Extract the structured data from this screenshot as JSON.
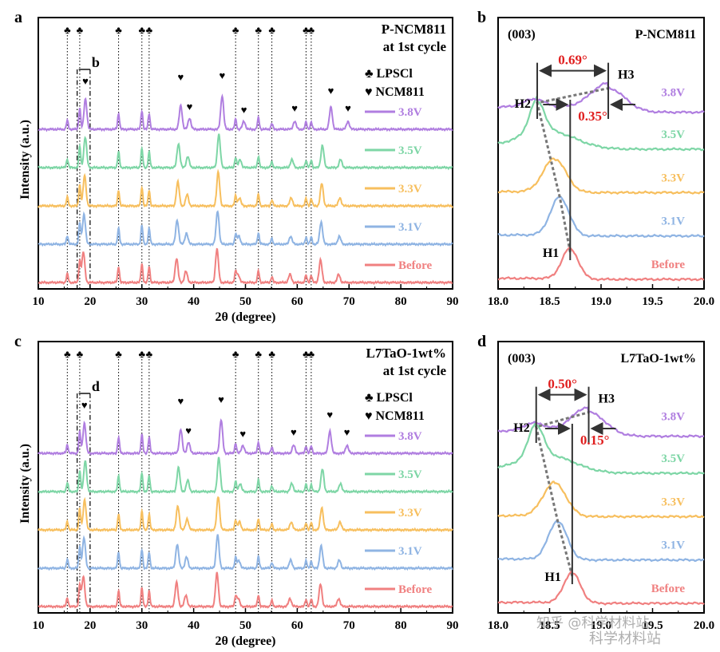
{
  "colors": {
    "Before": "#f08080",
    "3.1V": "#8fb4e3",
    "3.3V": "#f7bf5e",
    "3.5V": "#7ed6a6",
    "3.8V": "#b07ee0",
    "annotation_red": "#e01e1e",
    "axis": "#000000",
    "dashed_guide": "#777777"
  },
  "watermark": {
    "text1": "知乎 @科学材料站",
    "text2": "科学材料站"
  },
  "chart_data": [
    {
      "panel": "a",
      "type": "line",
      "title": "P-NCM811",
      "subtitle": "at 1st cycle",
      "xlabel": "2θ (degree)",
      "ylabel": "Intensity (a.u.)",
      "xlim": [
        10,
        90
      ],
      "xticks": [
        "10",
        "20",
        "30",
        "40",
        "50",
        "60",
        "70",
        "80",
        "90"
      ],
      "legend": {
        "lpscl": "♣ LPSCl",
        "ncm": "♥ NCM811"
      },
      "zoom_label": "b",
      "zoom_range": [
        17.5,
        20
      ],
      "series": [
        {
          "name": "Before",
          "label": "Before"
        },
        {
          "name": "3.1V",
          "label": "3.1V"
        },
        {
          "name": "3.3V",
          "label": "3.3V"
        },
        {
          "name": "3.5V",
          "label": "3.5V"
        },
        {
          "name": "3.8V",
          "label": "3.8V"
        }
      ],
      "lpscl_peaks": [
        15.6,
        18.0,
        25.5,
        30.0,
        31.4,
        48.1,
        52.5,
        55.1,
        61.7,
        62.7
      ],
      "ncm_peaks": [
        18.7,
        36.7,
        38.5,
        44.5,
        48.6,
        58.6,
        64.5,
        68.0
      ],
      "ncm_peaks_38V": [
        19.1,
        37.5,
        39.2,
        45.5,
        49.7,
        59.5,
        66.5,
        69.8
      ],
      "ncm_marker_positions_38V": [
        19.1,
        37.5,
        39.2,
        45.5,
        49.7,
        59.5,
        66.5,
        69.8
      ]
    },
    {
      "panel": "b",
      "type": "line",
      "title": "P-NCM811",
      "peak_label": "(003)",
      "xlim": [
        18.0,
        20.0
      ],
      "xticks": [
        "18.0",
        "18.5",
        "19.0",
        "19.5",
        "20.0"
      ],
      "series": [
        {
          "name": "Before",
          "label": "Before",
          "peak": 18.7
        },
        {
          "name": "3.1V",
          "label": "3.1V",
          "peak": 18.6
        },
        {
          "name": "3.3V",
          "label": "3.3V",
          "peak": 18.55
        },
        {
          "name": "3.5V",
          "label": "3.5V",
          "peak": 18.38
        },
        {
          "name": "3.8V",
          "label": "3.8V",
          "peak": 19.07
        }
      ],
      "H1": "H1",
      "H2": "H2",
      "H3": "H3",
      "shift_large": "0.69°",
      "shift_small": "0.35°"
    },
    {
      "panel": "c",
      "type": "line",
      "title": "L7TaO-1wt%",
      "subtitle": "at 1st cycle",
      "xlabel": "2θ (degree)",
      "ylabel": "Intensity (a.u.)",
      "xlim": [
        10,
        90
      ],
      "xticks": [
        "10",
        "20",
        "30",
        "40",
        "50",
        "60",
        "70",
        "80",
        "90"
      ],
      "legend": {
        "lpscl": "♣ LPSCl",
        "ncm": "♥ NCM811"
      },
      "zoom_label": "d",
      "zoom_range": [
        17.5,
        20
      ],
      "series": [
        {
          "name": "Before",
          "label": "Before"
        },
        {
          "name": "3.1V",
          "label": "3.1V"
        },
        {
          "name": "3.3V",
          "label": "3.3V"
        },
        {
          "name": "3.5V",
          "label": "3.5V"
        },
        {
          "name": "3.8V",
          "label": "3.8V"
        }
      ],
      "lpscl_peaks": [
        15.6,
        18.0,
        25.5,
        30.0,
        31.4,
        48.1,
        52.5,
        55.1,
        61.7,
        62.7
      ],
      "ncm_peaks": [
        18.7,
        36.7,
        38.5,
        44.5,
        48.6,
        58.6,
        64.5,
        68.0
      ],
      "ncm_peaks_38V": [
        18.9,
        37.5,
        39.0,
        45.3,
        49.5,
        59.3,
        66.3,
        69.6
      ],
      "ncm_marker_positions_38V": [
        18.9,
        37.5,
        39.0,
        45.3,
        49.5,
        59.3,
        66.3,
        69.6
      ]
    },
    {
      "panel": "d",
      "type": "line",
      "title": "L7TaO-1wt%",
      "peak_label": "(003)",
      "xlim": [
        18.0,
        20.0
      ],
      "xticks": [
        "18.0",
        "18.5",
        "19.0",
        "19.5",
        "20.0"
      ],
      "series": [
        {
          "name": "Before",
          "label": "Before",
          "peak": 18.72
        },
        {
          "name": "3.1V",
          "label": "3.1V",
          "peak": 18.58
        },
        {
          "name": "3.3V",
          "label": "3.3V",
          "peak": 18.55
        },
        {
          "name": "3.5V",
          "label": "3.5V",
          "peak": 18.37
        },
        {
          "name": "3.8V",
          "label": "3.8V",
          "peak": 18.88
        }
      ],
      "H1": "H1",
      "H2": "H2",
      "H3": "H3",
      "shift_large": "0.50°",
      "shift_small": "0.15°"
    }
  ]
}
